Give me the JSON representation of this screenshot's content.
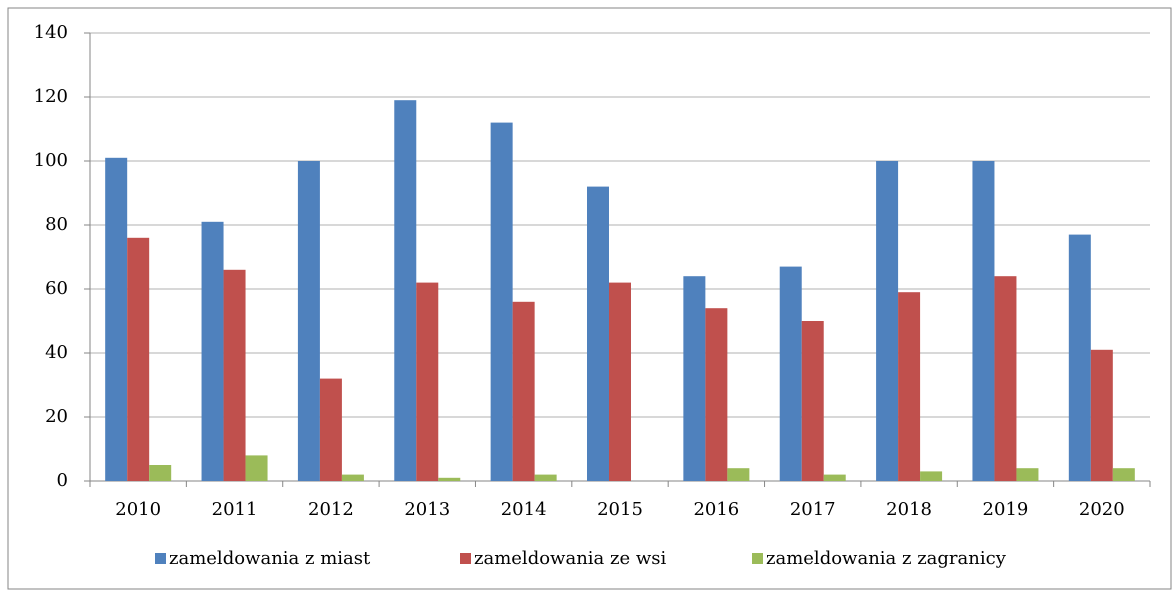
{
  "chart_data": {
    "type": "bar",
    "categories": [
      "2010",
      "2011",
      "2012",
      "2013",
      "2014",
      "2015",
      "2016",
      "2017",
      "2018",
      "2019",
      "2020"
    ],
    "series": [
      {
        "name": "zameldowania z miast",
        "color": "#4f81bd",
        "values": [
          101,
          81,
          100,
          119,
          112,
          92,
          64,
          67,
          100,
          100,
          77
        ]
      },
      {
        "name": "zameldowania ze wsi",
        "color": "#c0504d",
        "values": [
          76,
          66,
          32,
          62,
          56,
          62,
          54,
          50,
          59,
          64,
          41
        ]
      },
      {
        "name": "zameldowania z zagranicy",
        "color": "#9bbb59",
        "values": [
          5,
          8,
          2,
          1,
          2,
          0,
          4,
          2,
          3,
          4,
          4
        ]
      }
    ],
    "ylim": [
      0,
      140
    ],
    "yticks": [
      0,
      20,
      40,
      60,
      80,
      100,
      120,
      140
    ],
    "grid": true,
    "legend": "bottom"
  }
}
